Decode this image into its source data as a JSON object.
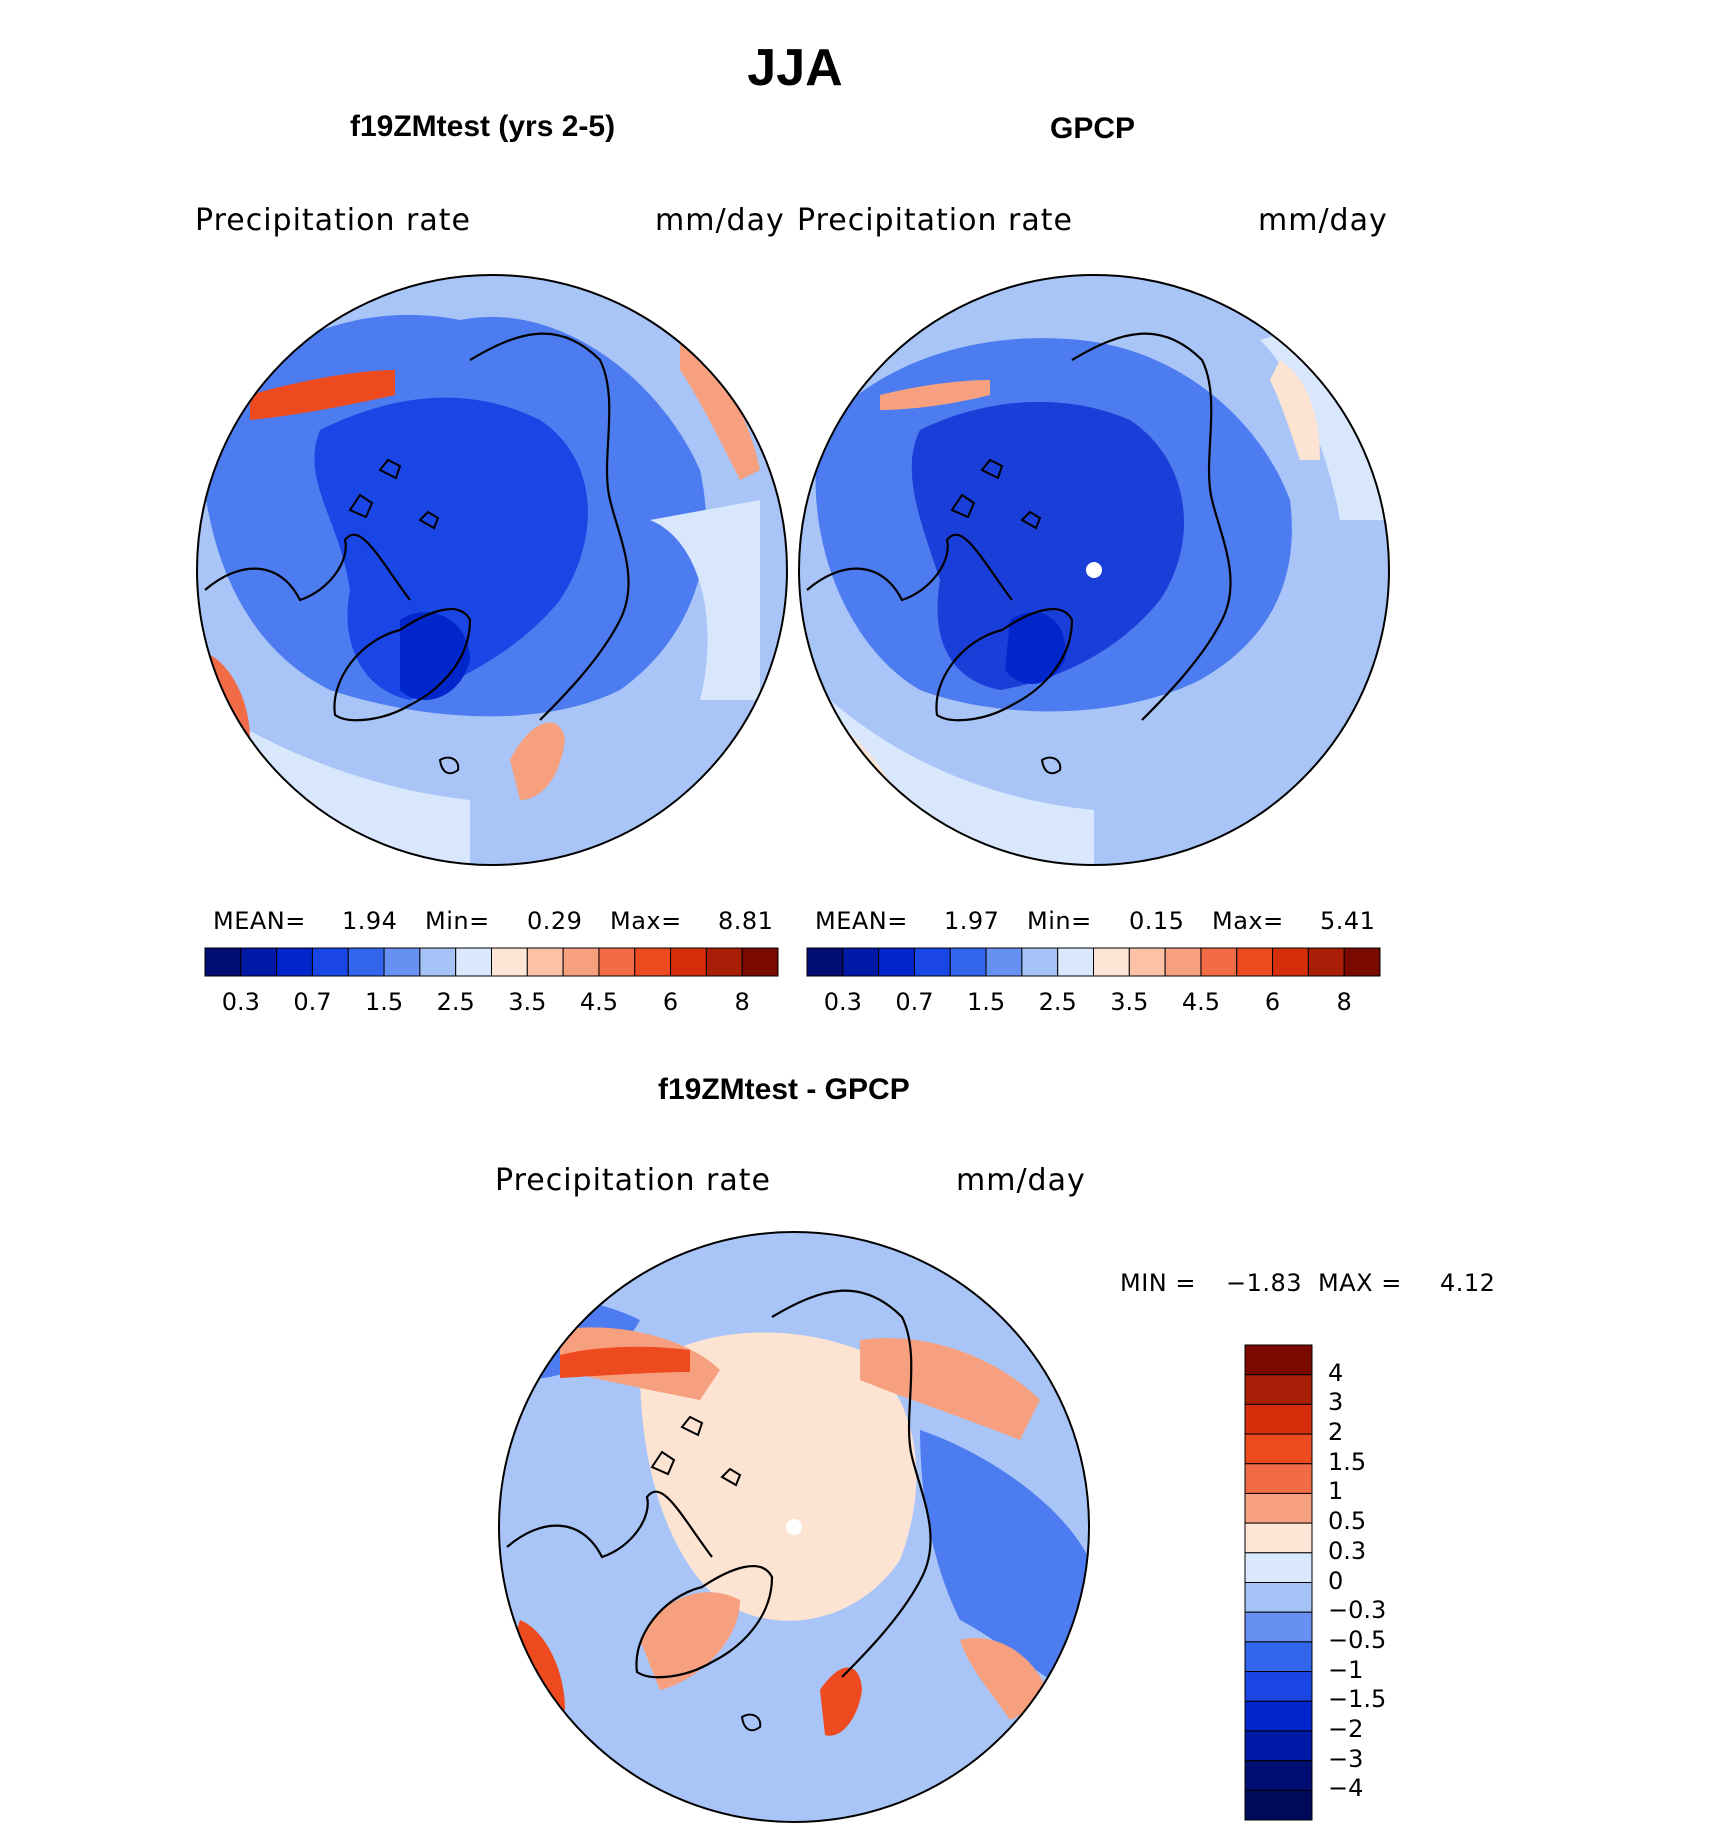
{
  "title": "JJA",
  "panels": [
    {
      "id": "model",
      "title": "f19ZMtest (yrs 2-5)",
      "variable": "Precipitation rate",
      "units": "mm/day",
      "stats": {
        "mean_label": "MEAN=",
        "mean": "1.94",
        "min_label": "Min=",
        "min": "0.29",
        "max_label": "Max=",
        "max": "8.81"
      }
    },
    {
      "id": "obs",
      "title": "GPCP",
      "variable": "Precipitation rate",
      "units": "mm/day",
      "stats": {
        "mean_label": "MEAN=",
        "mean": "1.97",
        "min_label": "Min=",
        "min": "0.15",
        "max_label": "Max=",
        "max": "5.41"
      }
    },
    {
      "id": "diff",
      "title": "f19ZMtest - GPCP",
      "variable": "Precipitation rate",
      "units": "mm/day",
      "stats": {
        "min_label": "MIN =",
        "min": "−1.83",
        "max_label": "MAX =",
        "max": "4.12"
      }
    }
  ],
  "abs_colorbar": {
    "colors": [
      "#000d73",
      "#0019a6",
      "#0026cc",
      "#1a46e6",
      "#3366ee",
      "#6690f2",
      "#a6c3f8",
      "#d9e8fc",
      "#fde6d6",
      "#fbc2a8",
      "#f7a07f",
      "#f26b47",
      "#ee4a1f",
      "#d42f0a",
      "#a81e06",
      "#7a0a00"
    ],
    "tick_labels": [
      "0.3",
      "0.7",
      "1.5",
      "2.5",
      "3.5",
      "4.5",
      "6",
      "8"
    ]
  },
  "diff_colorbar": {
    "colors": [
      "#7a0a00",
      "#a81e06",
      "#d42f0a",
      "#ee4a1f",
      "#f26b47",
      "#f7a07f",
      "#fde6d6",
      "#d9e8fc",
      "#a6c3f8",
      "#6690f2",
      "#3366ee",
      "#1a46e6",
      "#0026cc",
      "#0019a6",
      "#000d73",
      "#000a5a"
    ],
    "tick_labels": [
      "4",
      "3",
      "2",
      "1.5",
      "1",
      "0.5",
      "0.3",
      "0",
      "−0.3",
      "−0.5",
      "−1",
      "−1.5",
      "−2",
      "−3",
      "−4"
    ]
  },
  "colors": {
    "deep_blue": "#1a3fd9",
    "mid_blue": "#4d7cf0",
    "light_blue": "#a9c5f7",
    "pale_blue": "#d8e7fc",
    "peach": "#fde3d2",
    "salmon": "#f7a07f",
    "red_orange": "#ee4a1f"
  }
}
